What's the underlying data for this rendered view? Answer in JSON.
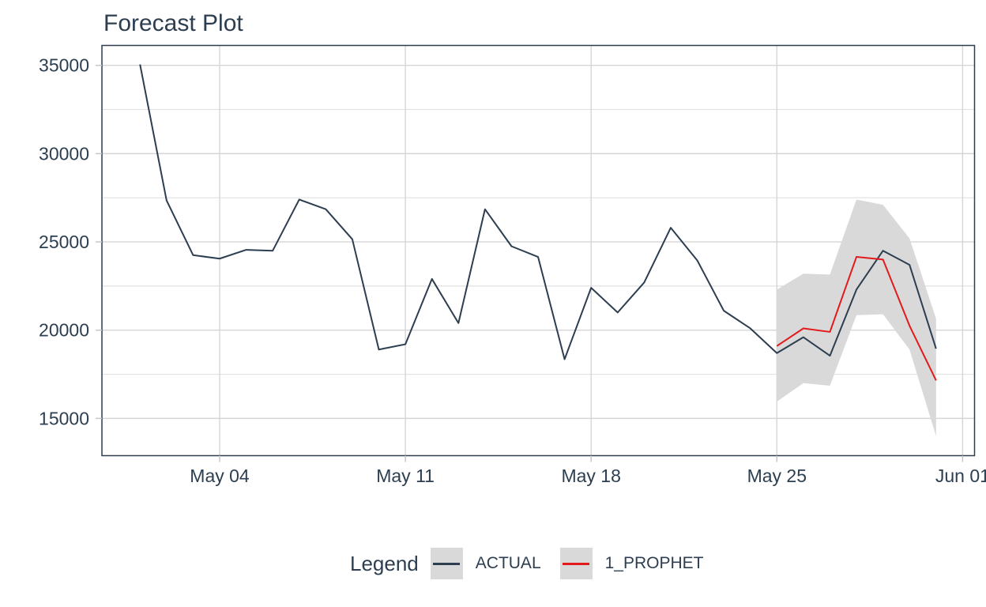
{
  "chart_data": {
    "type": "line",
    "title": "Forecast Plot",
    "legend": {
      "title": "Legend",
      "key_fill": "#d9d9d9",
      "entries": [
        {
          "label": "ACTUAL",
          "color": "#2c3e50"
        },
        {
          "label": "1_PROPHET",
          "color": "#e31a1c"
        }
      ],
      "position": "bottom"
    },
    "x_axis": {
      "ticks": [
        {
          "label": "May 04",
          "day": 4
        },
        {
          "label": "May 11",
          "day": 11
        },
        {
          "label": "May 18",
          "day": 18
        },
        {
          "label": "May 25",
          "day": 25
        },
        {
          "label": "Jun 01",
          "day": 32
        }
      ]
    },
    "y_axis": {
      "major_ticks": [
        15000,
        20000,
        25000,
        30000,
        35000
      ],
      "minor_ticks": [
        17500,
        22500,
        27500,
        32500
      ],
      "range": [
        12900,
        36100
      ]
    },
    "grid": {
      "major_color": "#d5d5d5",
      "minor_color": "#e1e1e1",
      "tick_color": "#c6c6c6",
      "border_color": "#2c3e50"
    },
    "series": [
      {
        "name": "ACTUAL",
        "color": "#2c3e50",
        "start_day": 1,
        "values": [
          35050,
          27350,
          24250,
          24050,
          24550,
          24500,
          27400,
          26850,
          25150,
          18900,
          19200,
          22900,
          20400,
          26850,
          24750,
          24150,
          18350,
          22400,
          21000,
          22700,
          25800,
          23950,
          21100,
          20100,
          18700,
          19600,
          18550,
          22300,
          24500,
          23700,
          18950
        ]
      },
      {
        "name": "1_PROPHET",
        "color": "#e31a1c",
        "start_day": 25,
        "values": [
          19100,
          20100,
          19900,
          24150,
          24000,
          20250,
          17150
        ],
        "ribbon": {
          "color": "#d9d9d9",
          "upper": [
            22300,
            23200,
            23150,
            27400,
            27100,
            25200,
            20650
          ],
          "lower": [
            15950,
            17000,
            16850,
            20850,
            20900,
            18900,
            14000
          ]
        }
      }
    ]
  }
}
